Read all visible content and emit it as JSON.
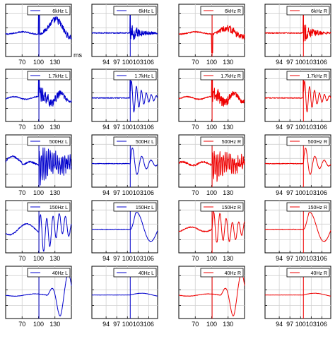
{
  "figure": {
    "x_unit_label": "ms"
  },
  "chart_data": {
    "type": "line",
    "rows": [
      "6kHz",
      "1.7kHz",
      "500Hz",
      "150Hz",
      "40Hz"
    ],
    "columns": [
      {
        "channel": "L",
        "color": "#0000cc",
        "xlim": [
          40,
          160
        ],
        "xticks": [
          70,
          100,
          130
        ],
        "xtick_labels": [
          "70",
          "100",
          "130"
        ],
        "wide": true
      },
      {
        "channel": "L",
        "color": "#0000cc",
        "xlim": [
          90,
          108.5
        ],
        "xticks": [
          94,
          97,
          100,
          103,
          106
        ],
        "xtick_labels": [
          "94",
          "97",
          "100",
          "103",
          "106"
        ],
        "wide": false
      },
      {
        "channel": "R",
        "color": "#ee0000",
        "xlim": [
          40,
          160
        ],
        "xticks": [
          70,
          100,
          130
        ],
        "xtick_labels": [
          "70",
          "100",
          "130"
        ],
        "wide": true
      },
      {
        "channel": "R",
        "color": "#ee0000",
        "xlim": [
          90,
          108.5
        ],
        "xticks": [
          94,
          97,
          100,
          103,
          106
        ],
        "xtick_labels": [
          "94",
          "97",
          "100",
          "103",
          "106"
        ],
        "wide": false
      }
    ],
    "stimulus_onset_ms": 100.8,
    "legend_labels": [
      [
        "6kHz L",
        "6kHz L",
        "6kHz R",
        "6kHz R"
      ],
      [
        "1.7kHz L",
        "1.7kHz L",
        "1.7kHz R",
        "1.7kHz R"
      ],
      [
        "500Hz L",
        "500Hz L",
        "500Hz R",
        "500Hz R"
      ],
      [
        "150Hz L",
        "150Hz L",
        "150Hz R",
        "150Hz R"
      ],
      [
        "40Hz L",
        "40Hz L",
        "40Hz R",
        "40Hz R"
      ]
    ],
    "grid": true,
    "legend_placement": "top-right"
  }
}
